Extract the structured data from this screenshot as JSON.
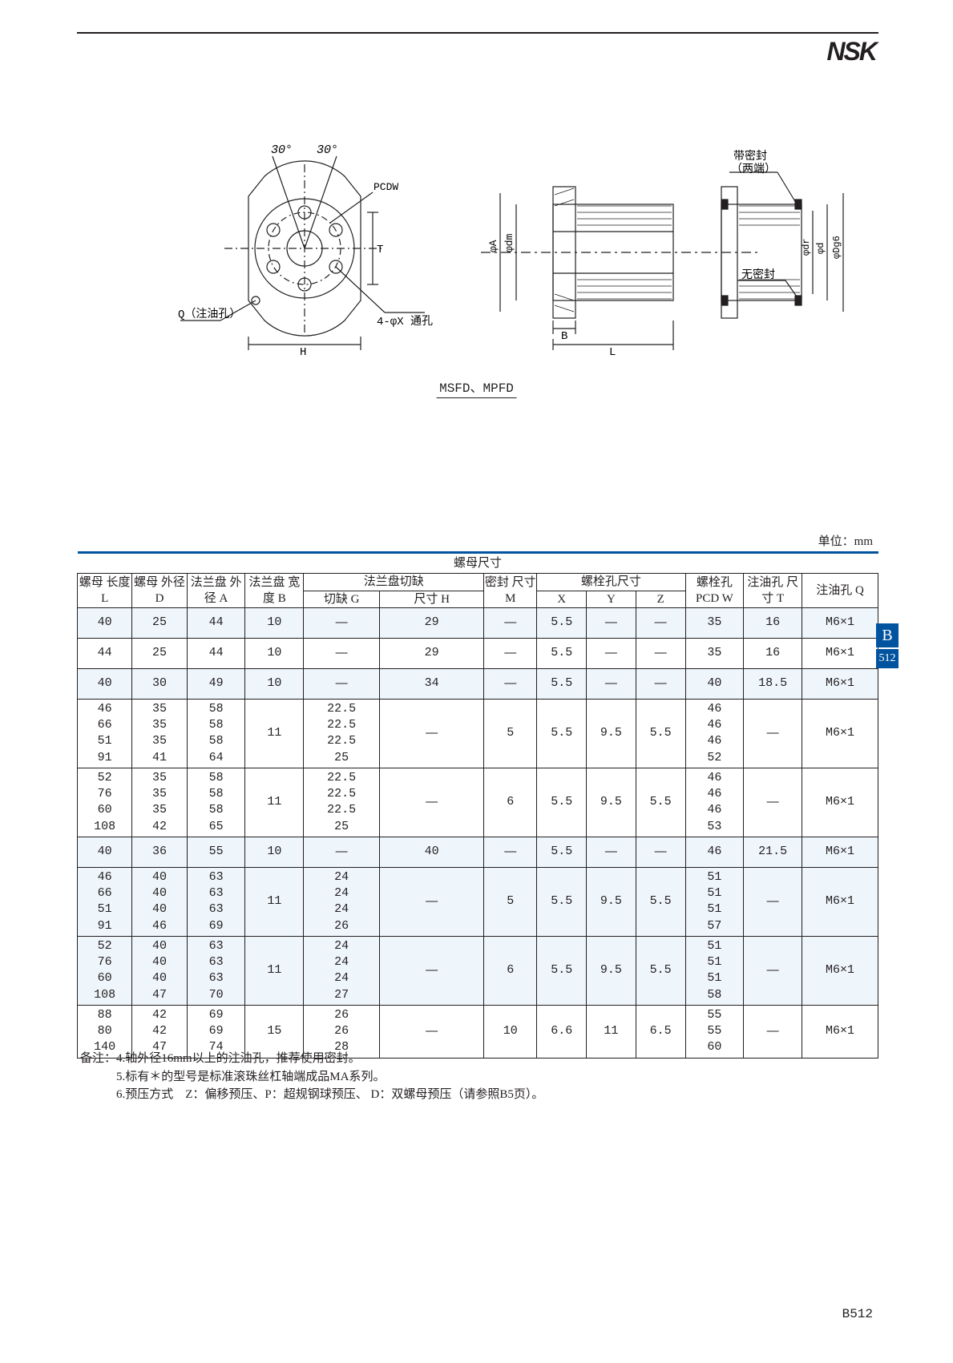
{
  "logo": "NSK",
  "diagram": {
    "caption": "MSFD、MPFD",
    "flange": {
      "angle1": "30°",
      "angle2": "30°",
      "pcdw": "PCDW",
      "t": "T",
      "q_label": "Q（注油孔）",
      "h": "H",
      "holes": "4-φX 通孔"
    },
    "nut": {
      "seal_top": "带密封",
      "seal_top2": "（两端）",
      "noseal": "无密封",
      "b": "B",
      "l": "L",
      "phiA": "φA",
      "phidm": "φdm",
      "phidr": "φdr",
      "phid": "φd",
      "phiDg6": "φDg6"
    }
  },
  "unit": "单位：mm",
  "headers": {
    "group": "螺母尺寸",
    "L": "螺母\n长度\nL",
    "D": "螺母\n外径\nD",
    "A": "法兰盘\n外径\nA",
    "B": "法兰盘\n宽度\nB",
    "flangecut": "法兰盘切缺",
    "G": "切缺\nG",
    "H": "尺寸\nH",
    "M": "密封\n尺寸\nM",
    "bolt": "螺栓孔尺寸",
    "X": "X",
    "Y": "Y",
    "Z": "Z",
    "W": "螺栓孔\nPCD\nW",
    "T": "注油孔\n尺寸\nT",
    "Q": "注油孔\nQ"
  },
  "rows": [
    {
      "L": "40",
      "D": "25",
      "A": "44",
      "B": "10",
      "G": "—",
      "H": "29",
      "M": "—",
      "X": "5.5",
      "Y": "—",
      "Z": "—",
      "W": "35",
      "T": "16",
      "Q": "M6×1",
      "stripe": true
    },
    {
      "L": "44",
      "D": "25",
      "A": "44",
      "B": "10",
      "G": "—",
      "H": "29",
      "M": "—",
      "X": "5.5",
      "Y": "—",
      "Z": "—",
      "W": "35",
      "T": "16",
      "Q": "M6×1"
    },
    {
      "L": "40",
      "D": "30",
      "A": "49",
      "B": "10",
      "G": "—",
      "H": "34",
      "M": "—",
      "X": "5.5",
      "Y": "—",
      "Z": "—",
      "W": "40",
      "T": "18.5",
      "Q": "M6×1",
      "stripe": true
    },
    {
      "L": "46\n66\n51\n91",
      "D": "35\n35\n35\n41",
      "A": "58\n58\n58\n64",
      "B": "11",
      "G": "22.5\n22.5\n22.5\n25",
      "H": "—",
      "M": "5",
      "X": "5.5",
      "Y": "9.5",
      "Z": "5.5",
      "W": "46\n46\n46\n52",
      "T": "—",
      "Q": "M6×1"
    },
    {
      "L": "52\n76\n60\n108",
      "D": "35\n35\n35\n42",
      "A": "58\n58\n58\n65",
      "B": "11",
      "G": "22.5\n22.5\n22.5\n25",
      "H": "—",
      "M": "6",
      "X": "5.5",
      "Y": "9.5",
      "Z": "5.5",
      "W": "46\n46\n46\n53",
      "T": "—",
      "Q": "M6×1"
    },
    {
      "L": "40",
      "D": "36",
      "A": "55",
      "B": "10",
      "G": "—",
      "H": "40",
      "M": "—",
      "X": "5.5",
      "Y": "—",
      "Z": "—",
      "W": "46",
      "T": "21.5",
      "Q": "M6×1",
      "stripe": true
    },
    {
      "L": "46\n66\n51\n91",
      "D": "40\n40\n40\n46",
      "A": "63\n63\n63\n69",
      "B": "11",
      "G": "24\n24\n24\n26",
      "H": "—",
      "M": "5",
      "X": "5.5",
      "Y": "9.5",
      "Z": "5.5",
      "W": "51\n51\n51\n57",
      "T": "—",
      "Q": "M6×1",
      "stripe": true
    },
    {
      "L": "52\n76\n60\n108",
      "D": "40\n40\n40\n47",
      "A": "63\n63\n63\n70",
      "B": "11",
      "G": "24\n24\n24\n27",
      "H": "—",
      "M": "6",
      "X": "5.5",
      "Y": "9.5",
      "Z": "5.5",
      "W": "51\n51\n51\n58",
      "T": "—",
      "Q": "M6×1",
      "stripe": true
    },
    {
      "L": "88\n80\n140",
      "D": "42\n42\n47",
      "A": "69\n69\n74",
      "B": "15",
      "G": "26\n26\n28",
      "H": "—",
      "M": "10",
      "X": "6.6",
      "Y": "11",
      "Z": "6.5",
      "W": "55\n55\n60",
      "T": "—",
      "Q": "M6×1"
    }
  ],
  "footnotes": {
    "label": "备注：",
    "n4": "4.轴外径16mm以上的注油孔，推荐使用密封。",
    "n5": "5.标有＊的型号是标准滚珠丝杠轴端成品MA系列。",
    "n6": "6.预压方式　Z：偏移预压、P：超规钢球预压、 D：双螺母预压（请参照B5页）。"
  },
  "sidetab": {
    "b": "B",
    "num": "512"
  },
  "pagenum": "B512",
  "colors": {
    "blue": "#00539f",
    "stripe": "#eef5fb",
    "ink": "#231f20"
  }
}
